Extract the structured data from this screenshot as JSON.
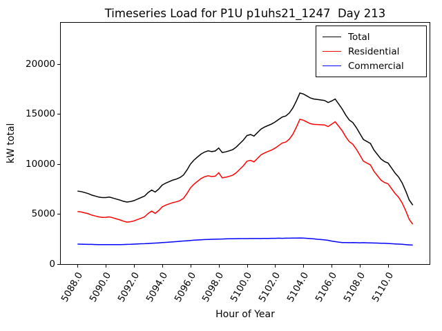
{
  "title": "Timeseries Load for P1U p1uhs21_1247  Day 213",
  "xlabel": "Hour of Year",
  "ylabel": "kW total",
  "chart_data": {
    "type": "line",
    "title": "Timeseries Load for P1U p1uhs21_1247  Day 213",
    "xlabel": "Hour of Year",
    "ylabel": "kW total",
    "grid": false,
    "legend_position": "upper right",
    "x_start": 5088.0,
    "x_step": 0.25,
    "x_end": 5111.75,
    "xlim": [
      5086.81,
      5112.94
    ],
    "ylim": [
      0,
      24120
    ],
    "x_ticks": [
      5088,
      5090,
      5092,
      5094,
      5096,
      5098,
      5100,
      5102,
      5104,
      5106,
      5108,
      5110
    ],
    "x_tick_labels": [
      "5088.0",
      "5090.0",
      "5092.0",
      "5094.0",
      "5096.0",
      "5098.0",
      "5100.0",
      "5102.0",
      "5104.0",
      "5106.0",
      "5108.0",
      "5110.0"
    ],
    "x_tick_rotation_deg": 60,
    "y_ticks": [
      0,
      5000,
      10000,
      15000,
      20000
    ],
    "y_tick_labels": [
      "0",
      "5000",
      "10000",
      "15000",
      "20000"
    ],
    "series": [
      {
        "name": "Total",
        "color": "#000000",
        "values": [
          7300,
          7250,
          7150,
          7050,
          6900,
          6800,
          6700,
          6650,
          6650,
          6700,
          6600,
          6500,
          6400,
          6280,
          6200,
          6250,
          6350,
          6500,
          6650,
          6800,
          7150,
          7400,
          7200,
          7500,
          7900,
          8100,
          8250,
          8400,
          8500,
          8650,
          8900,
          9400,
          10000,
          10400,
          10700,
          11000,
          11200,
          11320,
          11250,
          11300,
          11600,
          11150,
          11220,
          11320,
          11450,
          11700,
          12050,
          12400,
          12850,
          12950,
          12800,
          13150,
          13500,
          13700,
          13850,
          14000,
          14200,
          14450,
          14700,
          14800,
          15100,
          15600,
          16300,
          17100,
          17000,
          16800,
          16600,
          16500,
          16450,
          16400,
          16350,
          16150,
          16300,
          16500,
          16000,
          15500,
          14900,
          14400,
          14150,
          13650,
          13050,
          12450,
          12250,
          12050,
          11400,
          10950,
          10500,
          10250,
          10100,
          9600,
          9100,
          8700,
          8100,
          7300,
          6400,
          5900
        ]
      },
      {
        "name": "Residential",
        "color": "#ff0000",
        "values": [
          5250,
          5210,
          5130,
          5040,
          4900,
          4810,
          4720,
          4670,
          4680,
          4720,
          4630,
          4520,
          4420,
          4290,
          4200,
          4240,
          4320,
          4460,
          4590,
          4730,
          5060,
          5290,
          5070,
          5350,
          5720,
          5900,
          6020,
          6150,
          6220,
          6350,
          6570,
          7050,
          7620,
          7990,
          8270,
          8550,
          8730,
          8830,
          8750,
          8790,
          9130,
          8620,
          8680,
          8770,
          8900,
          9140,
          9480,
          9830,
          10280,
          10370,
          10220,
          10570,
          10920,
          11110,
          11260,
          11400,
          11600,
          11840,
          12100,
          12190,
          12490,
          12980,
          13680,
          14470,
          14380,
          14200,
          14030,
          13960,
          13950,
          13930,
          13910,
          13750,
          13980,
          14230,
          13780,
          13320,
          12730,
          12240,
          11980,
          11490,
          10900,
          10290,
          10100,
          9910,
          9270,
          8830,
          8390,
          8150,
          8020,
          7540,
          7060,
          6680,
          6100,
          5330,
          4460,
          3980
        ]
      },
      {
        "name": "Commercial",
        "color": "#0000ff",
        "values": [
          2000,
          1990,
          1980,
          1970,
          1970,
          1960,
          1950,
          1950,
          1940,
          1950,
          1940,
          1950,
          1950,
          1960,
          1970,
          1980,
          2000,
          2010,
          2030,
          2040,
          2060,
          2080,
          2100,
          2120,
          2150,
          2170,
          2200,
          2220,
          2250,
          2280,
          2310,
          2330,
          2360,
          2390,
          2410,
          2430,
          2450,
          2470,
          2480,
          2490,
          2500,
          2510,
          2520,
          2530,
          2530,
          2540,
          2550,
          2550,
          2550,
          2560,
          2560,
          2560,
          2560,
          2570,
          2570,
          2580,
          2580,
          2590,
          2580,
          2590,
          2590,
          2600,
          2600,
          2610,
          2600,
          2580,
          2550,
          2520,
          2480,
          2450,
          2420,
          2380,
          2300,
          2250,
          2200,
          2160,
          2150,
          2140,
          2150,
          2140,
          2130,
          2140,
          2130,
          2120,
          2110,
          2100,
          2090,
          2080,
          2060,
          2040,
          2020,
          2000,
          1980,
          1950,
          1920,
          1900
        ]
      }
    ]
  }
}
